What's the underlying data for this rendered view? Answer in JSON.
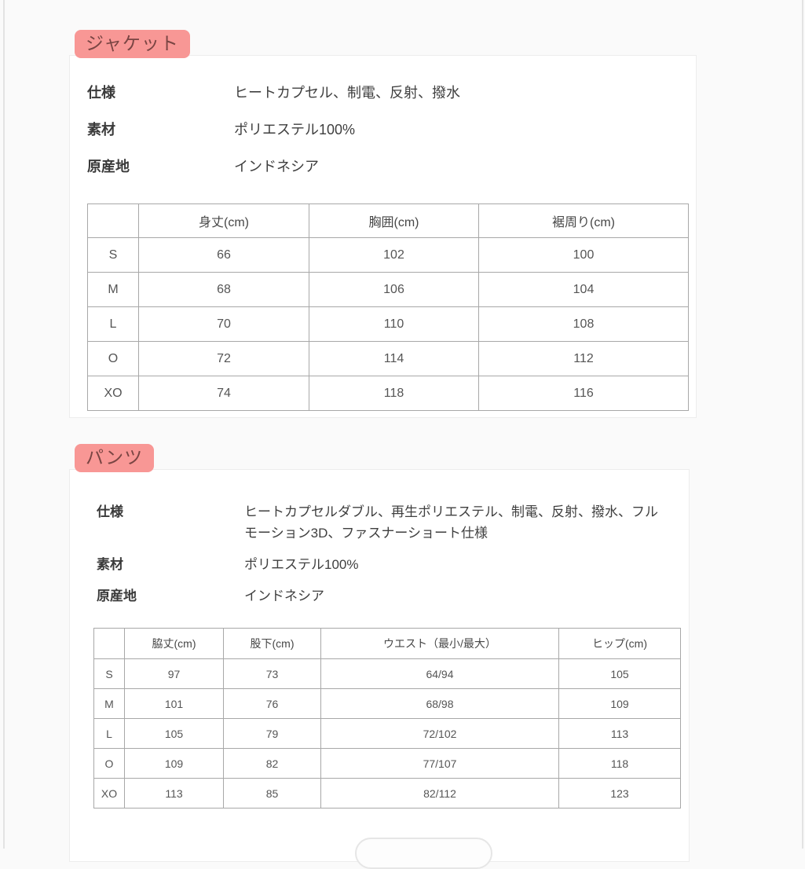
{
  "theme": {
    "badge_bg": "#f89795",
    "badge_text": "#7a4543",
    "table_border": "#a8a8a8",
    "card_bg": "#ffffff"
  },
  "sections": [
    {
      "badge": "ジャケット",
      "specs": [
        {
          "label": "仕様",
          "value": "ヒートカプセル、制電、反射、撥水"
        },
        {
          "label": "素材",
          "value": "ポリエステル100%"
        },
        {
          "label": "原産地",
          "value": "インドネシア"
        }
      ],
      "table": {
        "headers": [
          "",
          "身丈(cm)",
          "胸囲(cm)",
          "裾周り(cm)"
        ],
        "rows": [
          [
            "S",
            "66",
            "102",
            "100"
          ],
          [
            "M",
            "68",
            "106",
            "104"
          ],
          [
            "L",
            "70",
            "110",
            "108"
          ],
          [
            "O",
            "72",
            "114",
            "112"
          ],
          [
            "XO",
            "74",
            "118",
            "116"
          ]
        ]
      }
    },
    {
      "badge": "パンツ",
      "specs": [
        {
          "label": "仕様",
          "value": "ヒートカプセルダブル、再生ポリエステル、制電、反射、撥水、フルモーション3D、ファスナーショート仕様"
        },
        {
          "label": "素材",
          "value": "ポリエステル100%"
        },
        {
          "label": "原産地",
          "value": "インドネシア"
        }
      ],
      "table": {
        "headers": [
          "",
          "脇丈(cm)",
          "股下(cm)",
          "ウエスト（最小/最大）",
          "ヒップ(cm)"
        ],
        "rows": [
          [
            "S",
            "97",
            "73",
            "64/94",
            "105"
          ],
          [
            "M",
            "101",
            "76",
            "68/98",
            "109"
          ],
          [
            "L",
            "105",
            "79",
            "72/102",
            "113"
          ],
          [
            "O",
            "109",
            "82",
            "77/107",
            "118"
          ],
          [
            "XO",
            "113",
            "85",
            "82/112",
            "123"
          ]
        ]
      }
    }
  ]
}
